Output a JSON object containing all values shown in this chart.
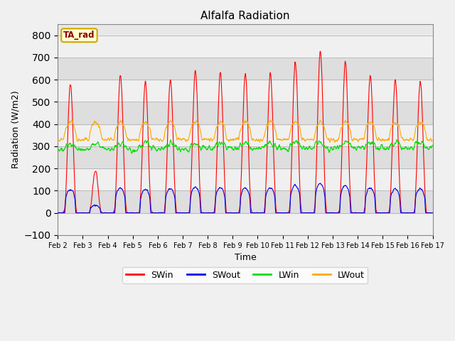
{
  "title": "Alfalfa Radiation",
  "xlabel": "Time",
  "ylabel": "Radiation (W/m2)",
  "ylim": [
    -100,
    850
  ],
  "yticks": [
    -100,
    0,
    100,
    200,
    300,
    400,
    500,
    600,
    700,
    800
  ],
  "legend_label": "TA_rad",
  "series": [
    "SWin",
    "SWout",
    "LWin",
    "LWout"
  ],
  "colors": [
    "#ff0000",
    "#0000ee",
    "#00dd00",
    "#ffaa00"
  ],
  "n_days": 15,
  "start_day": 2,
  "dt_hours": 0.25,
  "sw_peaks": [
    580,
    190,
    620,
    590,
    600,
    640,
    630,
    625,
    630,
    680,
    730,
    680,
    620,
    600,
    595
  ],
  "band_colors": [
    "#e8e8e8",
    "#d8d8d8"
  ],
  "fig_bg": "#f0f0f0"
}
